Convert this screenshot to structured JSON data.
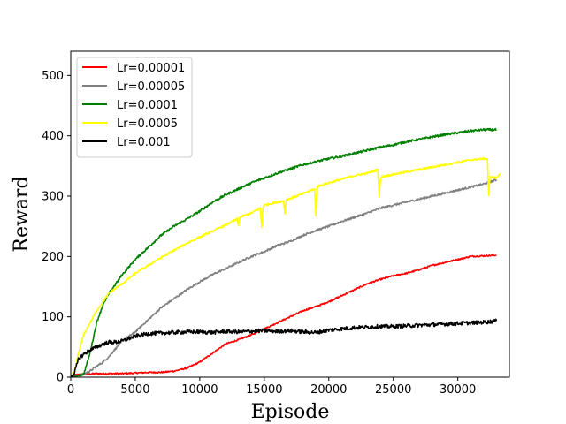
{
  "chart_data": {
    "type": "line",
    "title": "",
    "xlabel": "Episode",
    "ylabel": "Reward",
    "xlim": [
      0,
      34000
    ],
    "ylim": [
      0,
      540
    ],
    "xticks": [
      0,
      5000,
      10000,
      15000,
      20000,
      25000,
      30000
    ],
    "yticks": [
      0,
      100,
      200,
      300,
      400,
      500
    ],
    "grid": false,
    "legend_position": "top-left",
    "series": [
      {
        "name": "Lr=0.00001",
        "color": "#ff0000",
        "x": [
          0,
          500,
          1000,
          2000,
          3000,
          4000,
          5000,
          6000,
          7000,
          8000,
          9000,
          10000,
          11000,
          12000,
          13000,
          14000,
          15000,
          16000,
          17000,
          18000,
          19000,
          20000,
          21000,
          22000,
          23000,
          24000,
          25000,
          26000,
          27000,
          28000,
          29000,
          30000,
          31000,
          32000,
          33000
        ],
        "values": [
          2,
          4,
          5,
          6,
          6,
          6,
          7,
          8,
          8,
          10,
          15,
          25,
          40,
          55,
          62,
          70,
          80,
          90,
          100,
          110,
          117,
          125,
          135,
          145,
          155,
          162,
          168,
          172,
          178,
          185,
          190,
          195,
          200,
          201,
          202
        ]
      },
      {
        "name": "Lr=0.00005",
        "color": "#808080",
        "x": [
          0,
          500,
          1000,
          1500,
          2000,
          2500,
          3000,
          3500,
          4000,
          5000,
          6000,
          7000,
          8000,
          9000,
          10000,
          11000,
          12000,
          13000,
          14000,
          15000,
          16000,
          17000,
          18000,
          19000,
          20000,
          21000,
          22000,
          23000,
          24000,
          25000,
          26000,
          27000,
          28000,
          29000,
          30000,
          31000,
          32000,
          33000
        ],
        "values": [
          0,
          2,
          5,
          10,
          18,
          25,
          35,
          48,
          60,
          75,
          95,
          115,
          130,
          145,
          158,
          170,
          180,
          190,
          200,
          208,
          218,
          225,
          235,
          243,
          250,
          258,
          265,
          272,
          280,
          285,
          290,
          295,
          300,
          305,
          310,
          315,
          320,
          327
        ]
      },
      {
        "name": "Lr=0.0001",
        "color": "#008000",
        "x": [
          0,
          500,
          1000,
          1500,
          2000,
          2500,
          3000,
          4000,
          5000,
          6000,
          7000,
          8000,
          9000,
          10000,
          11000,
          12000,
          13000,
          14000,
          15000,
          16000,
          17000,
          18000,
          19000,
          20000,
          21000,
          22000,
          23000,
          24000,
          25000,
          26000,
          27000,
          28000,
          29000,
          30000,
          31000,
          32000,
          33000
        ],
        "values": [
          0,
          2,
          5,
          40,
          90,
          120,
          140,
          170,
          195,
          215,
          235,
          250,
          262,
          275,
          290,
          302,
          312,
          322,
          330,
          338,
          345,
          352,
          357,
          362,
          366,
          371,
          376,
          381,
          385,
          390,
          394,
          398,
          402,
          405,
          408,
          410,
          410
        ]
      },
      {
        "name": "Lr=0.0005",
        "color": "#ffff00",
        "x": [
          0,
          300,
          600,
          1000,
          1500,
          2000,
          2500,
          3000,
          4000,
          5000,
          6000,
          7000,
          8000,
          9000,
          10000,
          11000,
          12000,
          12900,
          13000,
          13100,
          14000,
          14700,
          14800,
          14900,
          15000,
          16000,
          16500,
          16600,
          16700,
          17000,
          18000,
          18900,
          19000,
          19100,
          20000,
          21000,
          22000,
          23000,
          23800,
          23900,
          24000,
          24100,
          25000,
          26000,
          27000,
          28000,
          29000,
          30000,
          31000,
          32000,
          32300,
          32400,
          32500,
          33000,
          33300
        ],
        "values": [
          0,
          10,
          40,
          70,
          90,
          110,
          125,
          140,
          155,
          172,
          185,
          198,
          210,
          222,
          232,
          242,
          252,
          262,
          250,
          265,
          272,
          280,
          248,
          282,
          285,
          290,
          292,
          272,
          294,
          296,
          304,
          312,
          268,
          316,
          322,
          328,
          334,
          338,
          344,
          300,
          326,
          332,
          336,
          340,
          344,
          348,
          352,
          356,
          360,
          362,
          362,
          300,
          332,
          330,
          338
        ]
      },
      {
        "name": "Lr=0.001",
        "color": "#000000",
        "x": [
          0,
          300,
          600,
          1000,
          1500,
          2000,
          2500,
          3000,
          3500,
          4000,
          5000,
          6000,
          7000,
          8000,
          9000,
          10000,
          11000,
          12000,
          13000,
          14000,
          15000,
          16000,
          17000,
          18000,
          19000,
          20000,
          21000,
          22000,
          23000,
          24000,
          25000,
          26000,
          27000,
          28000,
          29000,
          30000,
          31000,
          32000,
          33000
        ],
        "values": [
          0,
          8,
          30,
          38,
          45,
          50,
          55,
          58,
          58,
          60,
          68,
          72,
          73,
          74,
          75,
          75,
          74,
          76,
          75,
          76,
          77,
          76,
          77,
          75,
          74,
          78,
          80,
          82,
          83,
          84,
          84,
          85,
          86,
          87,
          88,
          89,
          90,
          91,
          93
        ]
      }
    ]
  }
}
